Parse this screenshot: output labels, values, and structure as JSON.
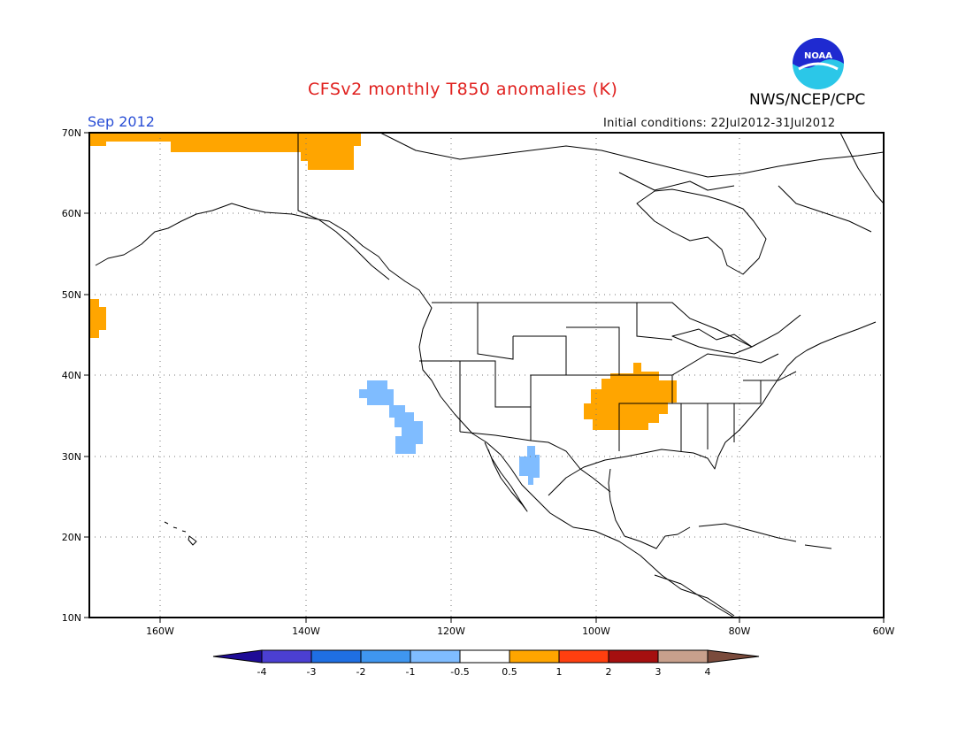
{
  "header": {
    "title": "CFSv2 monthly T850 anomalies (K)",
    "agency": "NWS/NCEP/CPC",
    "logo_text": "NOAA",
    "valid_month": "Sep 2012",
    "initial_conditions": "Initial conditions: 22Jul2012-31Jul2012"
  },
  "map": {
    "region": "North America",
    "lon_range": [
      -172,
      -60
    ],
    "lat_range": [
      10,
      70
    ],
    "lat_ticks": [
      "10N",
      "20N",
      "30N",
      "40N",
      "50N",
      "60N",
      "70N"
    ],
    "lon_ticks": [
      "160W",
      "140W",
      "120W",
      "100W",
      "80W",
      "60W"
    ],
    "grid": "dotted",
    "anomaly_regions": [
      {
        "name": "arctic-coast-warm",
        "category": "0.5 to 1",
        "color": "#ffa500"
      },
      {
        "name": "northeast-pacific-warm",
        "category": "0.5 to 1",
        "color": "#ffa500"
      },
      {
        "name": "central-us-warm",
        "category": "0.5 to 1",
        "color": "#ffa500"
      },
      {
        "name": "offshore-california-cool",
        "category": "-1 to -0.5",
        "color": "#7fbcff"
      },
      {
        "name": "sonora-cool",
        "category": "-1 to -0.5",
        "color": "#7fbcff"
      }
    ]
  },
  "colorbar": {
    "labels": [
      "-4",
      "-3",
      "-2",
      "-1",
      "-0.5",
      "0.5",
      "1",
      "2",
      "3",
      "4"
    ],
    "colors": [
      "#1e0c96",
      "#4b3fd2",
      "#1f6fe3",
      "#3f96f0",
      "#7fbcff",
      "#ffffff",
      "#ffa500",
      "#ff3f0f",
      "#a50f0f",
      "#c8a08c",
      "#7a4b3c"
    ]
  }
}
